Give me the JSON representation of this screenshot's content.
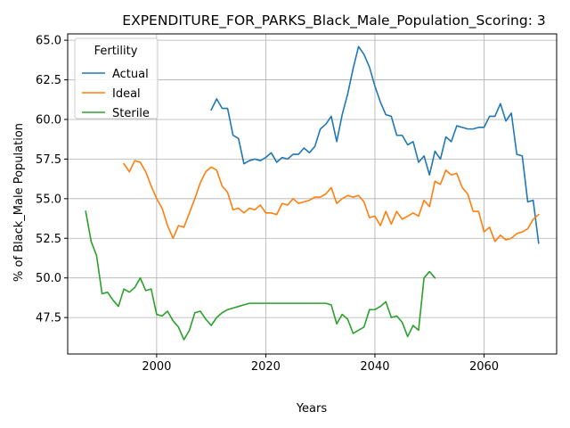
{
  "chart_data": {
    "type": "line",
    "title": "EXPENDITURE_FOR_PARKS_Black_Male_Population_Scoring: 3",
    "xlabel": "Years",
    "ylabel": "% of Black_Male Population",
    "xlim": [
      1983.7,
      2073.3
    ],
    "ylim": [
      45.2,
      65.4
    ],
    "xticks": [
      2000,
      2020,
      2040,
      2060
    ],
    "yticks": [
      47.5,
      50.0,
      52.5,
      55.0,
      57.5,
      60.0,
      62.5,
      65.0
    ],
    "ytick_labels": [
      "47.5",
      "50.0",
      "52.5",
      "55.0",
      "57.5",
      "60.0",
      "62.5",
      "65.0"
    ],
    "grid": true,
    "legend": {
      "title": "Fertility",
      "placement": "upper-left"
    },
    "series": [
      {
        "name": "Actual",
        "color": "#1f77b4",
        "x": [
          2010,
          2011,
          2012,
          2013,
          2014,
          2015,
          2016,
          2017,
          2018,
          2019,
          2020,
          2021,
          2022,
          2023,
          2024,
          2025,
          2026,
          2027,
          2028,
          2029,
          2030,
          2031,
          2032,
          2033,
          2034,
          2035,
          2036,
          2037,
          2038,
          2039,
          2040,
          2041,
          2042,
          2043,
          2044,
          2045,
          2046,
          2047,
          2048,
          2049,
          2050,
          2051,
          2052,
          2053,
          2054,
          2055,
          2056,
          2057,
          2058,
          2059,
          2060,
          2061,
          2062,
          2063,
          2064,
          2065,
          2066,
          2067,
          2068,
          2069,
          2070
        ],
        "y": [
          60.6,
          61.3,
          60.7,
          60.7,
          59.0,
          58.8,
          57.2,
          57.4,
          57.5,
          57.4,
          57.6,
          57.9,
          57.3,
          57.6,
          57.5,
          57.8,
          57.8,
          58.2,
          57.9,
          58.3,
          59.4,
          59.7,
          60.2,
          58.6,
          60.3,
          61.6,
          63.2,
          64.6,
          64.1,
          63.3,
          62.1,
          61.1,
          60.3,
          60.2,
          59.0,
          59.0,
          58.4,
          58.6,
          57.3,
          57.7,
          56.5,
          58.0,
          57.5,
          58.9,
          58.6,
          59.6,
          59.5,
          59.4,
          59.4,
          59.5,
          59.5,
          60.2,
          60.2,
          61.0,
          59.9,
          60.4,
          57.8,
          57.7,
          54.8,
          54.9,
          52.2
        ]
      },
      {
        "name": "Ideal",
        "color": "#ff7f0e",
        "x": [
          1994,
          1995,
          1996,
          1997,
          1998,
          1999,
          2000,
          2001,
          2002,
          2003,
          2004,
          2005,
          2006,
          2007,
          2008,
          2009,
          2010,
          2011,
          2012,
          2013,
          2014,
          2015,
          2016,
          2017,
          2018,
          2019,
          2020,
          2021,
          2022,
          2023,
          2024,
          2025,
          2026,
          2027,
          2028,
          2029,
          2030,
          2031,
          2032,
          2033,
          2034,
          2035,
          2036,
          2037,
          2038,
          2039,
          2040,
          2041,
          2042,
          2043,
          2044,
          2045,
          2046,
          2047,
          2048,
          2049,
          2050,
          2051,
          2052,
          2053,
          2054,
          2055,
          2056,
          2057,
          2058,
          2059,
          2060,
          2061,
          2062,
          2063,
          2064,
          2065,
          2066,
          2067,
          2068,
          2069,
          2070
        ],
        "y": [
          57.2,
          56.7,
          57.4,
          57.3,
          56.7,
          55.8,
          55.0,
          54.4,
          53.3,
          52.5,
          53.3,
          53.2,
          54.1,
          55.0,
          56.0,
          56.7,
          57.0,
          56.8,
          55.8,
          55.4,
          54.3,
          54.4,
          54.1,
          54.4,
          54.3,
          54.6,
          54.1,
          54.1,
          54.0,
          54.7,
          54.6,
          55.0,
          54.7,
          54.8,
          54.9,
          55.1,
          55.1,
          55.3,
          55.7,
          54.7,
          55.0,
          55.2,
          55.1,
          55.2,
          54.8,
          53.8,
          53.9,
          53.3,
          54.2,
          53.4,
          54.2,
          53.7,
          53.9,
          54.1,
          53.9,
          54.9,
          54.5,
          56.1,
          55.9,
          56.8,
          56.5,
          56.6,
          55.7,
          55.3,
          54.2,
          54.2,
          52.9,
          53.2,
          52.3,
          52.7,
          52.4,
          52.5,
          52.8,
          52.9,
          53.1,
          53.7,
          54.0
        ]
      },
      {
        "name": "Sterile",
        "color": "#2ca02c",
        "x": [
          1987,
          1988,
          1989,
          1990,
          1991,
          1992,
          1993,
          1994,
          1995,
          1996,
          1997,
          1998,
          1999,
          2000,
          2001,
          2002,
          2003,
          2004,
          2005,
          2006,
          2007,
          2008,
          2009,
          2010,
          2011,
          2012,
          2013,
          2014,
          2015,
          2016,
          2017,
          2018,
          2019,
          2020,
          2021,
          2022,
          2023,
          2024,
          2025,
          2026,
          2027,
          2028,
          2029,
          2030,
          2031,
          2032,
          2033,
          2034,
          2035,
          2036,
          2037,
          2038,
          2039,
          2040,
          2041,
          2042,
          2043,
          2044,
          2045,
          2046,
          2047,
          2048,
          2049,
          2050,
          2051
        ],
        "y": [
          54.2,
          52.3,
          51.4,
          49.0,
          49.1,
          48.6,
          48.2,
          49.3,
          49.1,
          49.4,
          50.0,
          49.2,
          49.3,
          47.7,
          47.6,
          47.9,
          47.3,
          46.9,
          46.1,
          46.7,
          47.8,
          47.9,
          47.4,
          47.0,
          47.5,
          47.8,
          48.0,
          48.1,
          48.2,
          48.3,
          48.4,
          48.4,
          48.4,
          48.4,
          48.4,
          48.4,
          48.4,
          48.4,
          48.4,
          48.4,
          48.4,
          48.4,
          48.4,
          48.4,
          48.4,
          48.3,
          47.1,
          47.7,
          47.4,
          46.5,
          46.7,
          46.9,
          48.0,
          48.0,
          48.2,
          48.5,
          47.5,
          47.6,
          47.2,
          46.3,
          47.0,
          46.7,
          50.0,
          50.4,
          50.0
        ]
      }
    ]
  }
}
